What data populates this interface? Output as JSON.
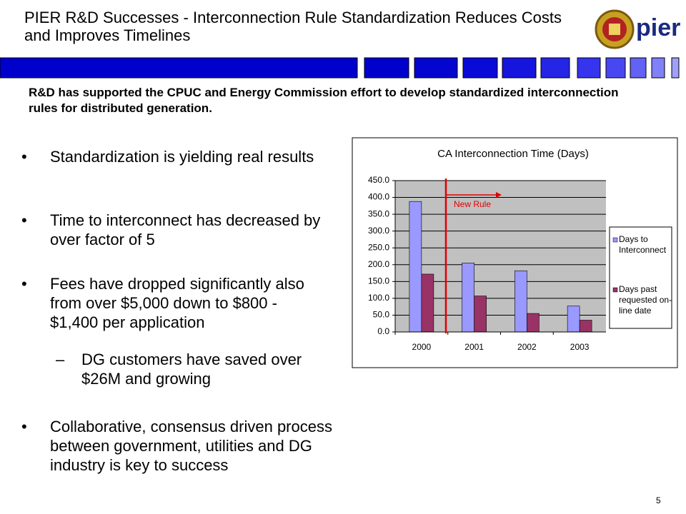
{
  "header": {
    "title": "PIER R&D Successes - Interconnection Rule Standardization Reduces Costs and Improves Timelines",
    "logo_text": "pier"
  },
  "subtitle": "R&D has supported the CPUC and Energy Commission effort to develop standardized interconnection rules for distributed generation.",
  "bullets": [
    {
      "text": "Standardization is yielding real results",
      "level": 1
    },
    {
      "text": "Time to interconnect has decreased by over factor of 5",
      "level": 1
    },
    {
      "text": "Fees have dropped significantly also from over $5,000 down to $800 - $1,400 per application",
      "level": 1
    },
    {
      "text": "DG customers have saved over $26M and growing",
      "level": 2
    },
    {
      "text": "Collaborative, consensus driven process between government, utilities and DG industry is key to success",
      "level": 1
    }
  ],
  "chart_data": {
    "type": "bar",
    "title": "CA Interconnection Time (Days)",
    "categories": [
      "2000",
      "2001",
      "2002",
      "2003"
    ],
    "series": [
      {
        "name": "Days to Interconnect",
        "color": "#9999ff",
        "values": [
          388,
          205,
          182,
          77
        ]
      },
      {
        "name": "Days past requested on-line date",
        "color": "#993366",
        "values": [
          172,
          107,
          55,
          35
        ]
      }
    ],
    "ylim": [
      0,
      450
    ],
    "yticks": [
      {
        "value": 0,
        "label": "0.0"
      },
      {
        "value": 50,
        "label": "50.0"
      },
      {
        "value": 100,
        "label": "100.0"
      },
      {
        "value": 150,
        "label": "150.0"
      },
      {
        "value": 200,
        "label": "200.0"
      },
      {
        "value": 250,
        "label": "250.0"
      },
      {
        "value": 300,
        "label": "300.0"
      },
      {
        "value": 350,
        "label": "350.0"
      },
      {
        "value": 400,
        "label": "400.0"
      },
      {
        "value": 450,
        "label": "450.0"
      }
    ],
    "grid": true,
    "legend": "right",
    "annotation": "New Rule"
  },
  "page_number": "5"
}
